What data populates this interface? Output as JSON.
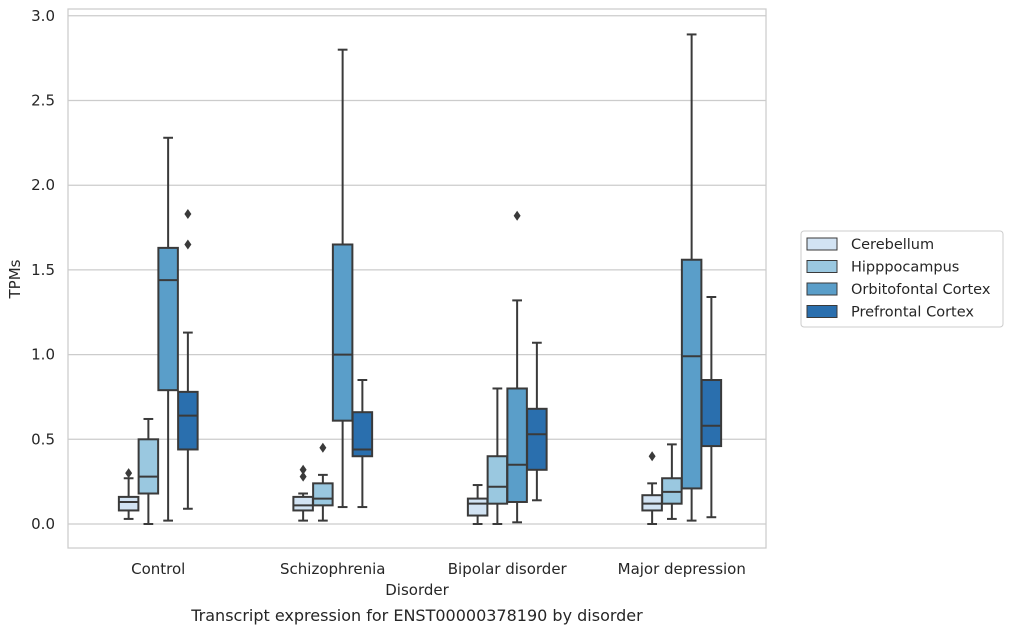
{
  "chart_data": {
    "type": "box",
    "xlabel": "Disorder",
    "ylabel": "TPMs",
    "caption": "Transcript expression for ENST00000378190 by disorder",
    "ylim": [
      -0.14,
      3.04
    ],
    "yticks": [
      "0.0",
      "0.5",
      "1.0",
      "1.5",
      "2.0",
      "2.5",
      "3.0"
    ],
    "grid": "horizontal",
    "legend_position": "right",
    "categories": [
      "Control",
      "Schizophrenia",
      "Bipolar disorder",
      "Major depression"
    ],
    "series": [
      {
        "name": "Cerebellum",
        "color": "#d2e3f3",
        "boxes": [
          {
            "whislo": 0.03,
            "q1": 0.08,
            "med": 0.13,
            "q3": 0.16,
            "whishi": 0.27,
            "fliers": [
              0.3
            ]
          },
          {
            "whislo": 0.02,
            "q1": 0.08,
            "med": 0.11,
            "q3": 0.16,
            "whishi": 0.18,
            "fliers": [
              0.28,
              0.32
            ]
          },
          {
            "whislo": 0.0,
            "q1": 0.05,
            "med": 0.12,
            "q3": 0.15,
            "whishi": 0.23,
            "fliers": []
          },
          {
            "whislo": 0.0,
            "q1": 0.08,
            "med": 0.12,
            "q3": 0.17,
            "whishi": 0.24,
            "fliers": [
              0.4
            ]
          }
        ]
      },
      {
        "name": "Hipppocampus",
        "color": "#9ac8e0",
        "boxes": [
          {
            "whislo": 0.0,
            "q1": 0.18,
            "med": 0.28,
            "q3": 0.5,
            "whishi": 0.62,
            "fliers": []
          },
          {
            "whislo": 0.02,
            "q1": 0.11,
            "med": 0.15,
            "q3": 0.24,
            "whishi": 0.29,
            "fliers": [
              0.45
            ]
          },
          {
            "whislo": 0.0,
            "q1": 0.12,
            "med": 0.22,
            "q3": 0.4,
            "whishi": 0.8,
            "fliers": []
          },
          {
            "whislo": 0.03,
            "q1": 0.12,
            "med": 0.19,
            "q3": 0.27,
            "whishi": 0.47,
            "fliers": []
          }
        ]
      },
      {
        "name": "Orbitofontal Cortex",
        "color": "#5a9ec9",
        "boxes": [
          {
            "whislo": 0.02,
            "q1": 0.79,
            "med": 1.44,
            "q3": 1.63,
            "whishi": 2.28,
            "fliers": []
          },
          {
            "whislo": 0.1,
            "q1": 0.61,
            "med": 1.0,
            "q3": 1.65,
            "whishi": 2.8,
            "fliers": []
          },
          {
            "whislo": 0.01,
            "q1": 0.13,
            "med": 0.35,
            "q3": 0.8,
            "whishi": 1.32,
            "fliers": [
              1.82
            ]
          },
          {
            "whislo": 0.02,
            "q1": 0.21,
            "med": 0.99,
            "q3": 1.56,
            "whishi": 2.89,
            "fliers": []
          }
        ]
      },
      {
        "name": "Prefrontal Cortex",
        "color": "#2a6fae",
        "boxes": [
          {
            "whislo": 0.09,
            "q1": 0.44,
            "med": 0.64,
            "q3": 0.78,
            "whishi": 1.13,
            "fliers": [
              1.65,
              1.83
            ]
          },
          {
            "whislo": 0.1,
            "q1": 0.4,
            "med": 0.44,
            "q3": 0.66,
            "whishi": 0.85,
            "fliers": []
          },
          {
            "whislo": 0.14,
            "q1": 0.32,
            "med": 0.53,
            "q3": 0.68,
            "whishi": 1.07,
            "fliers": []
          },
          {
            "whislo": 0.04,
            "q1": 0.46,
            "med": 0.58,
            "q3": 0.85,
            "whishi": 1.34,
            "fliers": []
          }
        ]
      }
    ]
  }
}
